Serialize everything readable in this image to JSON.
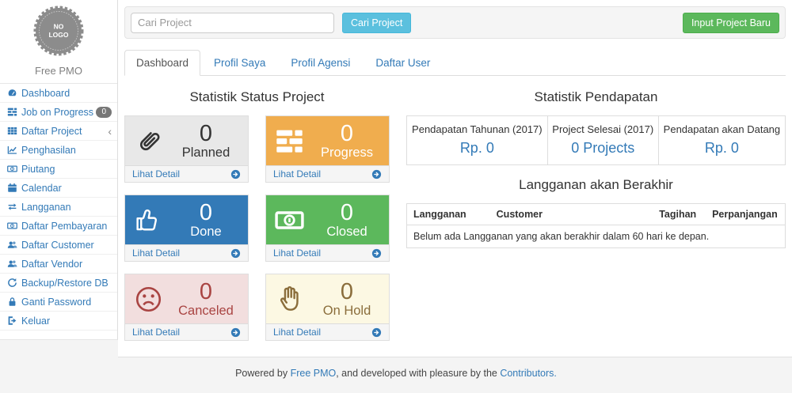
{
  "colors": {
    "link_blue": "#337ab7",
    "info_button": "#5bc0de",
    "success_button": "#5cb85c",
    "warning_orange": "#f0ad4e",
    "danger_bg": "#f2dede",
    "danger_text": "#a94442",
    "hold_bg": "#fcf8e3",
    "hold_text": "#8a6d3b",
    "planned_bg": "#e8e8e8",
    "badge_gray": "#777777"
  },
  "sidebar": {
    "logo_lines": [
      "NO",
      "LOGO"
    ],
    "brand": "Free PMO",
    "items": [
      {
        "icon": "dashboard-icon",
        "label": "Dashboard"
      },
      {
        "icon": "tasks-icon",
        "label": "Job on Progress",
        "badge": "0"
      },
      {
        "icon": "table-icon",
        "label": "Daftar Project",
        "chevron": "‹"
      },
      {
        "icon": "line-chart-icon",
        "label": "Penghasilan"
      },
      {
        "icon": "money-icon",
        "label": "Piutang"
      },
      {
        "icon": "calendar-icon",
        "label": "Calendar"
      },
      {
        "icon": "retweet-icon",
        "label": "Langganan"
      },
      {
        "icon": "money-icon",
        "label": "Daftar Pembayaran"
      },
      {
        "icon": "users-icon",
        "label": "Daftar Customer"
      },
      {
        "icon": "users-icon",
        "label": "Daftar Vendor"
      },
      {
        "icon": "refresh-icon",
        "label": "Backup/Restore DB"
      },
      {
        "icon": "lock-icon",
        "label": "Ganti Password"
      },
      {
        "icon": "sign-out-icon",
        "label": "Keluar"
      }
    ]
  },
  "topbar": {
    "search_placeholder": "Cari Project",
    "search_button": "Cari Project",
    "new_project_button": "Input Project Baru"
  },
  "tabs": [
    {
      "label": "Dashboard",
      "active": true
    },
    {
      "label": "Profil Saya",
      "active": false
    },
    {
      "label": "Profil Agensi",
      "active": false
    },
    {
      "label": "Daftar User",
      "active": false
    }
  ],
  "status_section": {
    "title": "Statistik Status Project",
    "link_label": "Lihat Detail",
    "cards": [
      {
        "label": "Planned",
        "count": "0",
        "icon": "paperclip-icon",
        "bg": "#e8e8e8",
        "fg": "#333333"
      },
      {
        "label": "Progress",
        "count": "0",
        "icon": "tasks-icon",
        "bg": "#f0ad4e",
        "fg": "#ffffff"
      },
      {
        "label": "Done",
        "count": "0",
        "icon": "thumbs-up-icon",
        "bg": "#337ab7",
        "fg": "#ffffff"
      },
      {
        "label": "Closed",
        "count": "0",
        "icon": "money-icon",
        "bg": "#5cb85c",
        "fg": "#ffffff"
      },
      {
        "label": "Canceled",
        "count": "0",
        "icon": "frown-icon",
        "bg": "#f2dede",
        "fg": "#a94442"
      },
      {
        "label": "On Hold",
        "count": "0",
        "icon": "hand-paper-icon",
        "bg": "#fcf8e3",
        "fg": "#8a6d3b"
      }
    ]
  },
  "income_section": {
    "title": "Statistik Pendapatan",
    "columns": [
      {
        "header": "Pendapatan Tahunan (2017)",
        "value": "Rp. 0"
      },
      {
        "header": "Project Selesai (2017)",
        "value": "0 Projects"
      },
      {
        "header": "Pendapatan akan Datang",
        "value": "Rp. 0"
      }
    ]
  },
  "subscription_section": {
    "title": "Langganan akan Berakhir",
    "headers": [
      "Langganan",
      "Customer",
      "Tagihan",
      "Perpanjangan"
    ],
    "empty_message": "Belum ada Langganan yang akan berakhir dalam 60 hari ke depan."
  },
  "footer": {
    "prefix": "Powered by ",
    "link1": "Free PMO",
    "middle": ", and developed with pleasure by the ",
    "link2": "Contributors."
  }
}
